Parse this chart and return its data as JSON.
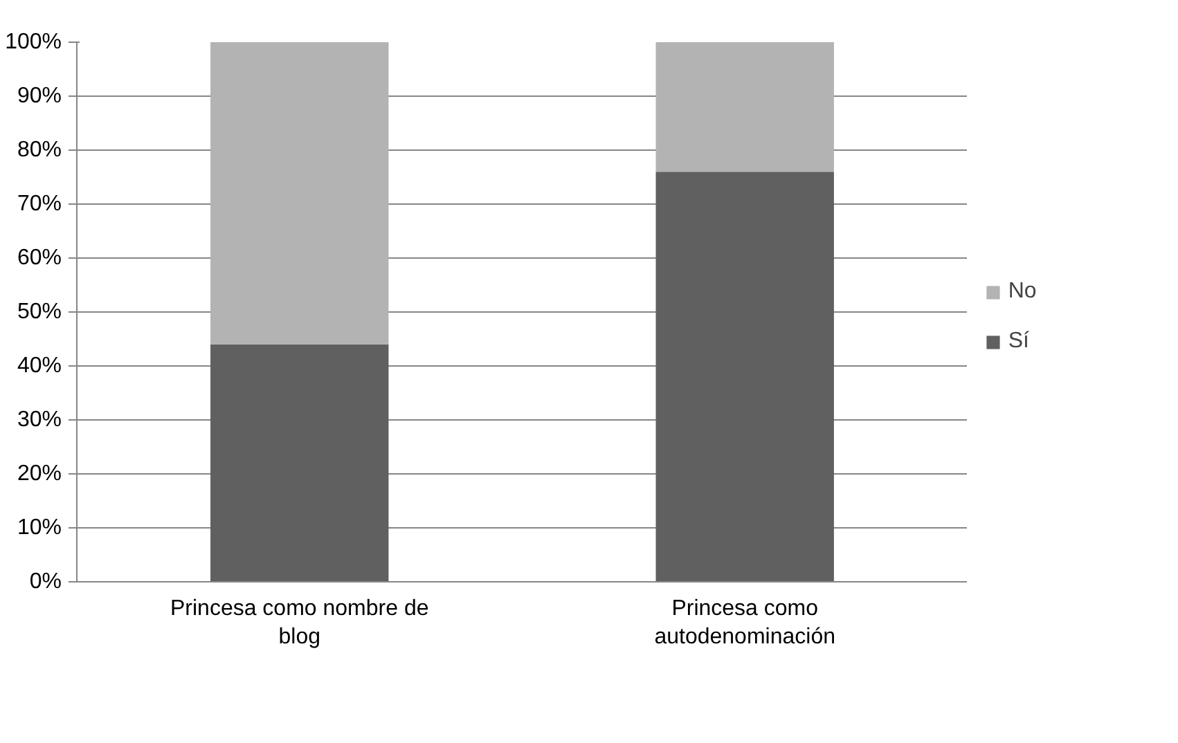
{
  "chart_data": {
    "type": "bar",
    "stacked": true,
    "categories": [
      "Princesa como nombre de blog",
      "Princesa como autodenominación"
    ],
    "series": [
      {
        "name": "Sí",
        "color": "#606060",
        "values": [
          44,
          76
        ]
      },
      {
        "name": "No",
        "color": "#b3b3b3",
        "values": [
          56,
          24
        ]
      }
    ],
    "ylim": [
      0,
      100
    ],
    "yticks": [
      {
        "value": 0,
        "label": "0%"
      },
      {
        "value": 10,
        "label": "10%"
      },
      {
        "value": 20,
        "label": "20%"
      },
      {
        "value": 30,
        "label": "30%"
      },
      {
        "value": 40,
        "label": "40%"
      },
      {
        "value": 50,
        "label": "50%"
      },
      {
        "value": 60,
        "label": "60%"
      },
      {
        "value": 70,
        "label": "70%"
      },
      {
        "value": 80,
        "label": "80%"
      },
      {
        "value": 90,
        "label": "90%"
      },
      {
        "value": 100,
        "label": "100%"
      }
    ],
    "grid": "y",
    "legend": "right"
  }
}
